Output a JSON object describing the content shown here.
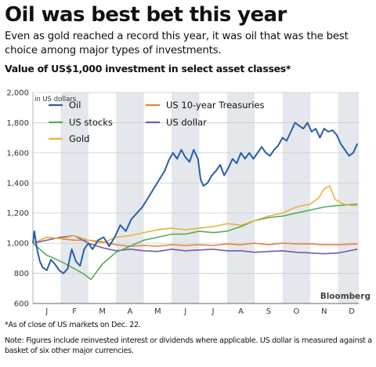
{
  "headline": "Oil was best bet this year",
  "subhead": "Even as gold reached a record this year, it was oil that was the best choice among major types of investments.",
  "footnote": "*As of close of US markets on Dec. 22.",
  "note": "Note: Figures include reinvested interest or dividends where applicable. US dollar is measured against a basket of six other major currencies.",
  "source": "Bloomberg",
  "chart_data": {
    "type": "line",
    "title": "Value of US$1,000 investment in select asset classes*",
    "unit_label": "in US dollars",
    "ylim": [
      600,
      2000
    ],
    "y_ticks": [
      600,
      800,
      "1,000",
      "1,200",
      "1,400",
      "1,600",
      "1,800",
      "2,000"
    ],
    "y_tick_values": [
      600,
      800,
      1000,
      1200,
      1400,
      1600,
      1800,
      2000
    ],
    "x_ticks": [
      "J",
      "F",
      "M",
      "A",
      "M",
      "J",
      "J",
      "A",
      "S",
      "O",
      "N",
      "D"
    ],
    "xlim": [
      0,
      11.75
    ],
    "grid": "alternating month shading with horizontal gridlines",
    "legend_position": "top-left, inside plot",
    "series": [
      {
        "name": "Oil",
        "color": "#2b5ea8",
        "x": [
          0,
          0.05,
          0.15,
          0.25,
          0.35,
          0.5,
          0.65,
          0.8,
          0.95,
          1.1,
          1.25,
          1.4,
          1.55,
          1.7,
          1.85,
          2.0,
          2.15,
          2.35,
          2.55,
          2.75,
          2.95,
          3.15,
          3.35,
          3.55,
          3.75,
          3.95,
          4.15,
          4.35,
          4.55,
          4.75,
          4.9,
          5.05,
          5.2,
          5.35,
          5.5,
          5.65,
          5.8,
          5.95,
          6.05,
          6.15,
          6.3,
          6.45,
          6.6,
          6.75,
          6.9,
          7.05,
          7.2,
          7.35,
          7.5,
          7.65,
          7.8,
          7.95,
          8.1,
          8.25,
          8.4,
          8.55,
          8.7,
          8.85,
          9.0,
          9.15,
          9.3,
          9.45,
          9.6,
          9.75,
          9.9,
          10.05,
          10.2,
          10.35,
          10.5,
          10.65,
          10.8,
          10.95,
          11.1,
          11.25,
          11.4,
          11.55,
          11.7
        ],
        "values": [
          1000,
          1080,
          960,
          880,
          840,
          820,
          890,
          860,
          820,
          800,
          830,
          960,
          880,
          850,
          960,
          1000,
          960,
          1020,
          1040,
          980,
          1040,
          1120,
          1080,
          1160,
          1200,
          1240,
          1300,
          1360,
          1420,
          1480,
          1550,
          1600,
          1560,
          1620,
          1570,
          1540,
          1620,
          1560,
          1420,
          1380,
          1400,
          1450,
          1480,
          1520,
          1450,
          1500,
          1560,
          1530,
          1600,
          1560,
          1600,
          1560,
          1600,
          1640,
          1600,
          1580,
          1620,
          1650,
          1700,
          1680,
          1740,
          1800,
          1780,
          1760,
          1800,
          1740,
          1760,
          1700,
          1760,
          1740,
          1750,
          1720,
          1660,
          1620,
          1580,
          1600,
          1660
        ]
      },
      {
        "name": "US 10-year Treasuries",
        "color": "#e8843a",
        "x": [
          0,
          0.5,
          1,
          1.5,
          2,
          2.5,
          3,
          3.5,
          4,
          4.5,
          5,
          5.5,
          6,
          6.5,
          7,
          7.5,
          8,
          8.5,
          9,
          9.5,
          10,
          10.5,
          11,
          11.7
        ],
        "values": [
          1000,
          1040,
          1030,
          1020,
          1020,
          1010,
          990,
          980,
          985,
          980,
          990,
          985,
          990,
          985,
          995,
          990,
          1000,
          990,
          1000,
          995,
          995,
          990,
          990,
          995
        ]
      },
      {
        "name": "US stocks",
        "color": "#5aaa5a",
        "x": [
          0,
          0.5,
          1,
          1.5,
          1.8,
          2.1,
          2.5,
          3,
          3.5,
          4,
          4.5,
          5,
          5.5,
          6,
          6.5,
          7,
          7.5,
          8,
          8.5,
          9,
          9.5,
          10,
          10.5,
          11,
          11.7
        ],
        "values": [
          1000,
          920,
          880,
          830,
          800,
          760,
          860,
          940,
          980,
          1020,
          1040,
          1060,
          1060,
          1080,
          1070,
          1080,
          1110,
          1150,
          1170,
          1180,
          1200,
          1220,
          1240,
          1250,
          1260
        ]
      },
      {
        "name": "US dollar",
        "color": "#7a5aa8",
        "x": [
          0,
          0.5,
          1,
          1.5,
          2,
          2.5,
          3,
          3.5,
          4,
          4.5,
          5,
          5.5,
          6,
          6.5,
          7,
          7.5,
          8,
          8.5,
          9,
          9.5,
          10,
          10.5,
          11,
          11.7
        ],
        "values": [
          1000,
          1020,
          1040,
          1050,
          1000,
          970,
          950,
          960,
          950,
          945,
          960,
          950,
          955,
          960,
          950,
          950,
          940,
          945,
          950,
          940,
          935,
          930,
          935,
          960
        ]
      },
      {
        "name": "Gold",
        "color": "#e8b33c",
        "x": [
          0,
          0.5,
          1,
          1.5,
          2,
          2.5,
          3,
          3.5,
          4,
          4.5,
          5,
          5.5,
          6,
          6.5,
          7,
          7.5,
          8,
          8.5,
          9,
          9.5,
          10,
          10.3,
          10.5,
          10.7,
          10.9,
          11.2,
          11.5,
          11.7
        ],
        "values": [
          1000,
          1040,
          1030,
          1050,
          1020,
          1000,
          1040,
          1050,
          1070,
          1090,
          1100,
          1090,
          1100,
          1110,
          1130,
          1120,
          1150,
          1180,
          1200,
          1240,
          1260,
          1300,
          1360,
          1380,
          1290,
          1260,
          1250,
          1250
        ]
      }
    ]
  }
}
